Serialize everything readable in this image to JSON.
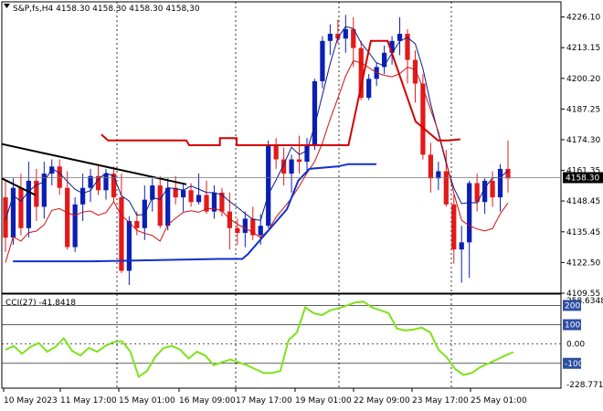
{
  "header": {
    "symbol_line": "S&P,fs,H4  4158.30 4158.30 4158.30 4158,30",
    "cci_label": "CCI(27) -41.8418"
  },
  "colors": {
    "bull": "#0a1fb5",
    "bear": "#e31a1a",
    "cci": "#7fe21a",
    "envelope_red": "#d30000",
    "envelope_blue": "#1030d0",
    "trendline": "#000000",
    "grid": "#000000",
    "price_box": "#000000"
  },
  "chart_data": [
    {
      "type": "candlestick",
      "title": "S&P,fs,H4",
      "ylim": [
        4109.55,
        4232.5
      ],
      "y_ticks": [
        "4226.10",
        "4213.15",
        "4200.20",
        "4187.25",
        "4174.30",
        "4161.35",
        "4148.45",
        "4135.45",
        "4122.50",
        "4109.55"
      ],
      "y_tick_values": [
        4226.1,
        4213.15,
        4200.2,
        4187.25,
        4174.3,
        4161.35,
        4148.45,
        4135.45,
        4122.5,
        4109.55
      ],
      "current_price": "4158.30",
      "current_price_value": 4158.3,
      "x_labels": [
        "10 May 2023",
        "11 May 17:00",
        "15 May 01:00",
        "16 May 09:00",
        "17 May 17:00",
        "19 May 01:00",
        "22 May 09:00",
        "23 May 17:00",
        "25 May 01:00"
      ],
      "candles": [
        [
          4150,
          4157,
          4127,
          4133
        ],
        [
          4133,
          4158,
          4130,
          4154
        ],
        [
          4154,
          4160,
          4134,
          4137
        ],
        [
          4137,
          4165,
          4133,
          4157
        ],
        [
          4157,
          4162,
          4140,
          4146
        ],
        [
          4146,
          4165,
          4141,
          4160
        ],
        [
          4160,
          4166,
          4155,
          4163
        ],
        [
          4163,
          4166,
          4151,
          4154
        ],
        [
          4154,
          4161,
          4128,
          4129
        ],
        [
          4129,
          4150,
          4127,
          4147
        ],
        [
          4147,
          4160,
          4140,
          4154
        ],
        [
          4154,
          4162,
          4148,
          4159
        ],
        [
          4159,
          4164,
          4151,
          4153
        ],
        [
          4153,
          4162,
          4149,
          4160
        ],
        [
          4160,
          4163,
          4148,
          4150
        ],
        [
          4150,
          4160,
          4118,
          4119
        ],
        [
          4119,
          4142,
          4113,
          4140
        ],
        [
          4140,
          4144,
          4134,
          4137
        ],
        [
          4137,
          4155,
          4132,
          4149
        ],
        [
          4149,
          4158,
          4144,
          4155
        ],
        [
          4155,
          4159,
          4137,
          4138
        ],
        [
          4138,
          4158,
          4136,
          4154
        ],
        [
          4154,
          4159,
          4147,
          4150
        ],
        [
          4150,
          4156,
          4144,
          4153
        ],
        [
          4153,
          4156,
          4146,
          4148
        ],
        [
          4148,
          4160,
          4147,
          4151
        ],
        [
          4151,
          4157,
          4143,
          4144
        ],
        [
          4144,
          4155,
          4141,
          4152
        ],
        [
          4152,
          4154,
          4142,
          4144
        ],
        [
          4144,
          4152,
          4128,
          4137
        ],
        [
          4137,
          4141,
          4130,
          4135
        ],
        [
          4135,
          4144,
          4129,
          4141
        ],
        [
          4141,
          4146,
          4132,
          4134
        ],
        [
          4134,
          4143,
          4130,
          4138
        ],
        [
          4138,
          4174,
          4137,
          4172
        ],
        [
          4172,
          4175,
          4162,
          4166
        ],
        [
          4166,
          4171,
          4155,
          4160
        ],
        [
          4160,
          4168,
          4152,
          4166
        ],
        [
          4166,
          4176,
          4160,
          4165
        ],
        [
          4165,
          4175,
          4160,
          4172
        ],
        [
          4172,
          4200,
          4170,
          4199
        ],
        [
          4199,
          4218,
          4196,
          4216
        ],
        [
          4216,
          4223,
          4210,
          4219
        ],
        [
          4219,
          4225,
          4215,
          4217
        ],
        [
          4217,
          4227,
          4211,
          4221
        ],
        [
          4221,
          4226,
          4205,
          4213
        ],
        [
          4213,
          4216,
          4191,
          4192
        ],
        [
          4192,
          4202,
          4191,
          4200
        ],
        [
          4200,
          4207,
          4197,
          4205
        ],
        [
          4205,
          4214,
          4202,
          4211
        ],
        [
          4211,
          4218,
          4206,
          4216
        ],
        [
          4216,
          4226,
          4210,
          4219
        ],
        [
          4219,
          4221,
          4198,
          4208
        ],
        [
          4208,
          4212,
          4190,
          4198
        ],
        [
          4198,
          4202,
          4166,
          4168
        ],
        [
          4168,
          4173,
          4152,
          4158
        ],
        [
          4158,
          4165,
          4153,
          4161
        ],
        [
          4161,
          4170,
          4146,
          4147
        ],
        [
          4147,
          4151,
          4122,
          4128
        ],
        [
          4128,
          4138,
          4114,
          4131
        ],
        [
          4131,
          4157,
          4116,
          4156
        ],
        [
          4156,
          4160,
          4144,
          4148
        ],
        [
          4148,
          4158,
          4143,
          4157
        ],
        [
          4157,
          4161,
          4146,
          4150
        ],
        [
          4150,
          4164,
          4144,
          4162
        ],
        [
          4162,
          4174,
          4152,
          4158
        ]
      ],
      "envelope_upper": [
        [
          0.178,
          4176.5
        ],
        [
          0.19,
          4174
        ],
        [
          0.33,
          4174
        ],
        [
          0.335,
          4172
        ],
        [
          0.39,
          4172
        ],
        [
          0.39,
          4175
        ],
        [
          0.42,
          4175
        ],
        [
          0.42,
          4172
        ],
        [
          0.62,
          4172
        ],
        [
          0.66,
          4216
        ],
        [
          0.69,
          4216
        ],
        [
          0.74,
          4182
        ],
        [
          0.78,
          4174
        ],
        [
          0.8,
          4174
        ],
        [
          0.82,
          4174.5
        ]
      ],
      "envelope_lower": [
        [
          0.02,
          4123
        ],
        [
          0.16,
          4123
        ],
        [
          0.39,
          4124
        ],
        [
          0.43,
          4124
        ],
        [
          0.44,
          4126
        ],
        [
          0.51,
          4145
        ],
        [
          0.53,
          4157
        ],
        [
          0.55,
          4162
        ],
        [
          0.6,
          4163
        ],
        [
          0.62,
          4164
        ],
        [
          0.67,
          4164
        ]
      ],
      "trendline": [
        [
          0.0,
          4172.5
        ],
        [
          0.33,
          4155.5
        ]
      ],
      "trendline2": [
        [
          0.0,
          4158
        ],
        [
          0.06,
          4151
        ]
      ]
    },
    {
      "type": "line",
      "title": "CCI(27)",
      "value": -41.8418,
      "ylim": [
        -228.7712,
        258.6348
      ],
      "y_ticks": [
        "258.6348",
        "200",
        "100",
        "0.00",
        "-100",
        "-228.7712"
      ],
      "y_tick_values": [
        258.6348,
        200,
        100,
        0,
        -100,
        -228.7712
      ],
      "values": [
        -30,
        -10,
        -50,
        -15,
        5,
        -40,
        -15,
        30,
        -35,
        -60,
        -20,
        -40,
        -10,
        10,
        15,
        -40,
        -170,
        -140,
        -65,
        -20,
        -10,
        -30,
        -75,
        -40,
        -60,
        -110,
        -95,
        -80,
        -95,
        -110,
        -130,
        -150,
        -150,
        -140,
        20,
        60,
        190,
        160,
        150,
        175,
        185,
        200,
        215,
        220,
        190,
        175,
        160,
        80,
        70,
        75,
        85,
        60,
        -30,
        -70,
        -130,
        -160,
        -150,
        -120,
        -100,
        -80,
        -60,
        -42
      ]
    }
  ]
}
